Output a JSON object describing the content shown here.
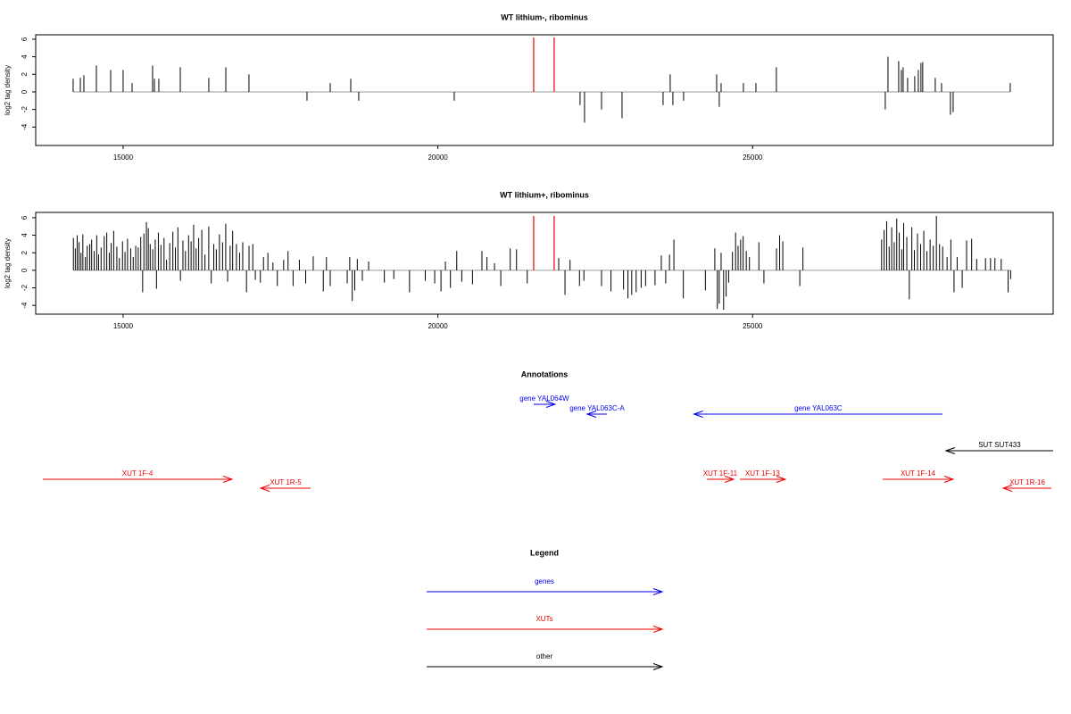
{
  "chart_data": [
    {
      "type": "spike",
      "title": "WT lithium-, ribominus",
      "ylabel": "log2 tag density",
      "xlim": [
        13611,
        29775
      ],
      "ylim": [
        -6.1,
        6.5
      ],
      "xticks": [
        15000,
        20000,
        25000
      ],
      "yticks": [
        -4,
        -2,
        0,
        2,
        4,
        6
      ],
      "series": [
        {
          "color": "#000000",
          "x": [
            14206,
            14320,
            14376,
            14575,
            14802,
            15000,
            15142,
            15468,
            15497,
            15567,
            15908,
            16361,
            16631,
            16999,
            17921,
            18290,
            18616,
            18743,
            20260,
            22259,
            22330,
            22600,
            22926,
            23578,
            23691,
            23734,
            23904,
            24429,
            24471,
            24500,
            24854,
            25053,
            25378,
            27108,
            27151,
            27321,
            27364,
            27392,
            27463,
            27576,
            27633,
            27675,
            27703,
            27902,
            28002,
            28143,
            28186,
            29093
          ],
          "values": [
            1.5,
            1.6,
            1.9,
            3,
            2.5,
            2.5,
            1,
            3,
            1.5,
            1.5,
            2.8,
            1.6,
            2.8,
            2,
            -1,
            1,
            1.5,
            -1,
            -1,
            -1.5,
            -3.5,
            -2,
            -3,
            -1.5,
            2,
            -1.5,
            -1,
            2,
            -1.7,
            1,
            1,
            1,
            2.8,
            -2,
            4,
            3.5,
            2.5,
            2.8,
            1.6,
            1.8,
            2.5,
            3.3,
            3.4,
            1.6,
            1,
            -2.6,
            -2.3,
            1
          ]
        },
        {
          "color": "#ee3333",
          "x": [
            21522,
            21848
          ],
          "values": [
            6.2,
            6.2
          ]
        }
      ]
    },
    {
      "type": "spike",
      "title": "WT lithium+, ribominus",
      "ylabel": "log2 tag density",
      "xlim": [
        13611,
        29775
      ],
      "ylim": [
        -5.0,
        6.6
      ],
      "xticks": [
        15000,
        20000,
        25000
      ],
      "yticks": [
        -4,
        -2,
        0,
        2,
        4,
        6
      ],
      "series": [
        {
          "color": "#000000",
          "x": [
            14210,
            14240,
            14270,
            14300,
            14330,
            14360,
            14400,
            14430,
            14470,
            14500,
            14540,
            14580,
            14610,
            14650,
            14700,
            14740,
            14780,
            14810,
            14850,
            14900,
            14940,
            14990,
            15030,
            15070,
            15120,
            15160,
            15200,
            15240,
            15280,
            15310,
            15330,
            15370,
            15400,
            15430,
            15470,
            15510,
            15530,
            15560,
            15600,
            15650,
            15690,
            15740,
            15790,
            15830,
            15870,
            15910,
            15950,
            15990,
            16040,
            16080,
            16120,
            16160,
            16200,
            16250,
            16300,
            16360,
            16400,
            16440,
            16480,
            16530,
            16580,
            16630,
            16660,
            16700,
            16740,
            16800,
            16850,
            16900,
            16960,
            17000,
            17060,
            17100,
            17180,
            17230,
            17300,
            17380,
            17450,
            17550,
            17620,
            17700,
            17800,
            17900,
            18020,
            18180,
            18230,
            18290,
            18560,
            18600,
            18640,
            18680,
            18720,
            18800,
            18900,
            19150,
            19300,
            19550,
            19800,
            19950,
            20050,
            20120,
            20200,
            20300,
            20380,
            20550,
            20700,
            20780,
            20900,
            21000,
            21150,
            21250,
            21420,
            21920,
            22020,
            22100,
            22250,
            22320,
            22600,
            22750,
            22950,
            23020,
            23080,
            23150,
            23230,
            23300,
            23450,
            23550,
            23620,
            23680,
            23750,
            23900,
            24250,
            24400,
            24440,
            24470,
            24500,
            24540,
            24580,
            24620,
            24680,
            24730,
            24770,
            24810,
            24850,
            24900,
            24950,
            25100,
            25180,
            25380,
            25430,
            25480,
            25750,
            25800,
            27050,
            27090,
            27130,
            27170,
            27210,
            27250,
            27290,
            27330,
            27370,
            27400,
            27450,
            27490,
            27530,
            27570,
            27620,
            27670,
            27720,
            27770,
            27820,
            27870,
            27920,
            27970,
            28020,
            28090,
            28150,
            28200,
            28250,
            28330,
            28400,
            28480,
            28560,
            28700,
            28780,
            28850,
            28950,
            29060,
            29100
          ],
          "values": [
            3.7,
            2.5,
            4,
            3.2,
            2,
            4.1,
            1.5,
            2.8,
            3,
            3.5,
            2.2,
            4,
            1.8,
            2.6,
            3.9,
            4.3,
            2,
            3.1,
            4.5,
            2.7,
            1.4,
            3.3,
            2.1,
            3.6,
            2.5,
            1.5,
            2.8,
            2.6,
            3.8,
            -2.5,
            4.2,
            5.5,
            4.8,
            3,
            2.4,
            3.5,
            -2.1,
            4.3,
            2.9,
            3.7,
            1.2,
            3.1,
            4.4,
            2.6,
            4.9,
            -1.2,
            3.4,
            2.2,
            4,
            3.3,
            5.2,
            2.5,
            3.7,
            4.6,
            1.8,
            5,
            -1.5,
            3,
            2.4,
            4.1,
            3.2,
            5.3,
            -1.3,
            2.8,
            4.5,
            3,
            2,
            3.2,
            -2.5,
            2.8,
            3,
            -1.1,
            -1.4,
            1.5,
            2,
            0.9,
            -1.8,
            1.2,
            2.2,
            -1.8,
            1.2,
            -1.5,
            1.6,
            -2.4,
            1.5,
            -1.8,
            -1.5,
            1.5,
            -3.5,
            -2.3,
            1.3,
            -1.2,
            1,
            -1.4,
            -1,
            -2.5,
            -1.2,
            -1.5,
            -2.4,
            1,
            -2,
            2.2,
            -1.3,
            -1.6,
            2.2,
            1.5,
            0.8,
            -1.8,
            2.5,
            2.4,
            -1.5,
            1.4,
            -2.8,
            1.2,
            -1.8,
            -1.2,
            -1.8,
            -2.4,
            -2.2,
            -3.2,
            -2.8,
            -2.5,
            -2,
            -1.8,
            -1.7,
            1.7,
            -1.5,
            1.8,
            3.5,
            -3.2,
            -2.3,
            2.5,
            -4.4,
            -3.8,
            2,
            -4.5,
            -3,
            -1.4,
            2.1,
            4.3,
            2.8,
            3.5,
            3.9,
            2.2,
            1.5,
            3.2,
            -1.5,
            2.5,
            4,
            3.3,
            -1.8,
            2.6,
            3.5,
            4.6,
            5.6,
            2.7,
            4.9,
            3.2,
            5.9,
            4.3,
            2.4,
            5.4,
            3.8,
            -3.3,
            4.9,
            2.3,
            4.2,
            3,
            4.5,
            2.2,
            3.5,
            2.8,
            6.2,
            3,
            2.7,
            1.5,
            3.5,
            -2.5,
            1.5,
            -2,
            3.4,
            3.6,
            1.3,
            1.4,
            1.4,
            1.4,
            1.3,
            -2.5,
            -1
          ]
        },
        {
          "color": "#ee3333",
          "x": [
            21522,
            21848
          ],
          "values": [
            6.2,
            6.2
          ]
        }
      ]
    },
    {
      "type": "annotation",
      "title": "Annotations",
      "xlim": [
        13611,
        29775
      ],
      "features": [
        {
          "label": "gene YAL064W",
          "start": 21522,
          "end": 21862,
          "color": "#0000ee"
        },
        {
          "label": "gene YAL063C-A",
          "start": 22685,
          "end": 22373,
          "color": "#0000ee"
        },
        {
          "label": "gene YAL063C",
          "start": 28020,
          "end": 24070,
          "color": "#0000ee"
        },
        {
          "label": "SUT SUT433",
          "start": 29775,
          "end": 28072,
          "color": "#000000"
        },
        {
          "label": "XUT 1F-4",
          "start": 13725,
          "end": 16730,
          "color": "#ee0000"
        },
        {
          "label": "XUT 1R-5",
          "start": 17978,
          "end": 17184,
          "color": "#ee0000"
        },
        {
          "label": "XUT 1F-11",
          "start": 24272,
          "end": 24698,
          "color": "#ee0000"
        },
        {
          "label": "XUT 1F-13",
          "start": 24797,
          "end": 25520,
          "color": "#ee0000"
        },
        {
          "label": "XUT 1F-14",
          "start": 27066,
          "end": 28186,
          "color": "#ee0000"
        },
        {
          "label": "XUT 1R-16",
          "start": 29747,
          "end": 28981,
          "color": "#ee0000"
        }
      ]
    },
    {
      "type": "legend",
      "title": "Legend",
      "series": [
        {
          "name": "genes",
          "color": "#0000ee"
        },
        {
          "name": "XUTs",
          "color": "#ee0000"
        },
        {
          "name": "other",
          "color": "#000000"
        }
      ]
    }
  ]
}
